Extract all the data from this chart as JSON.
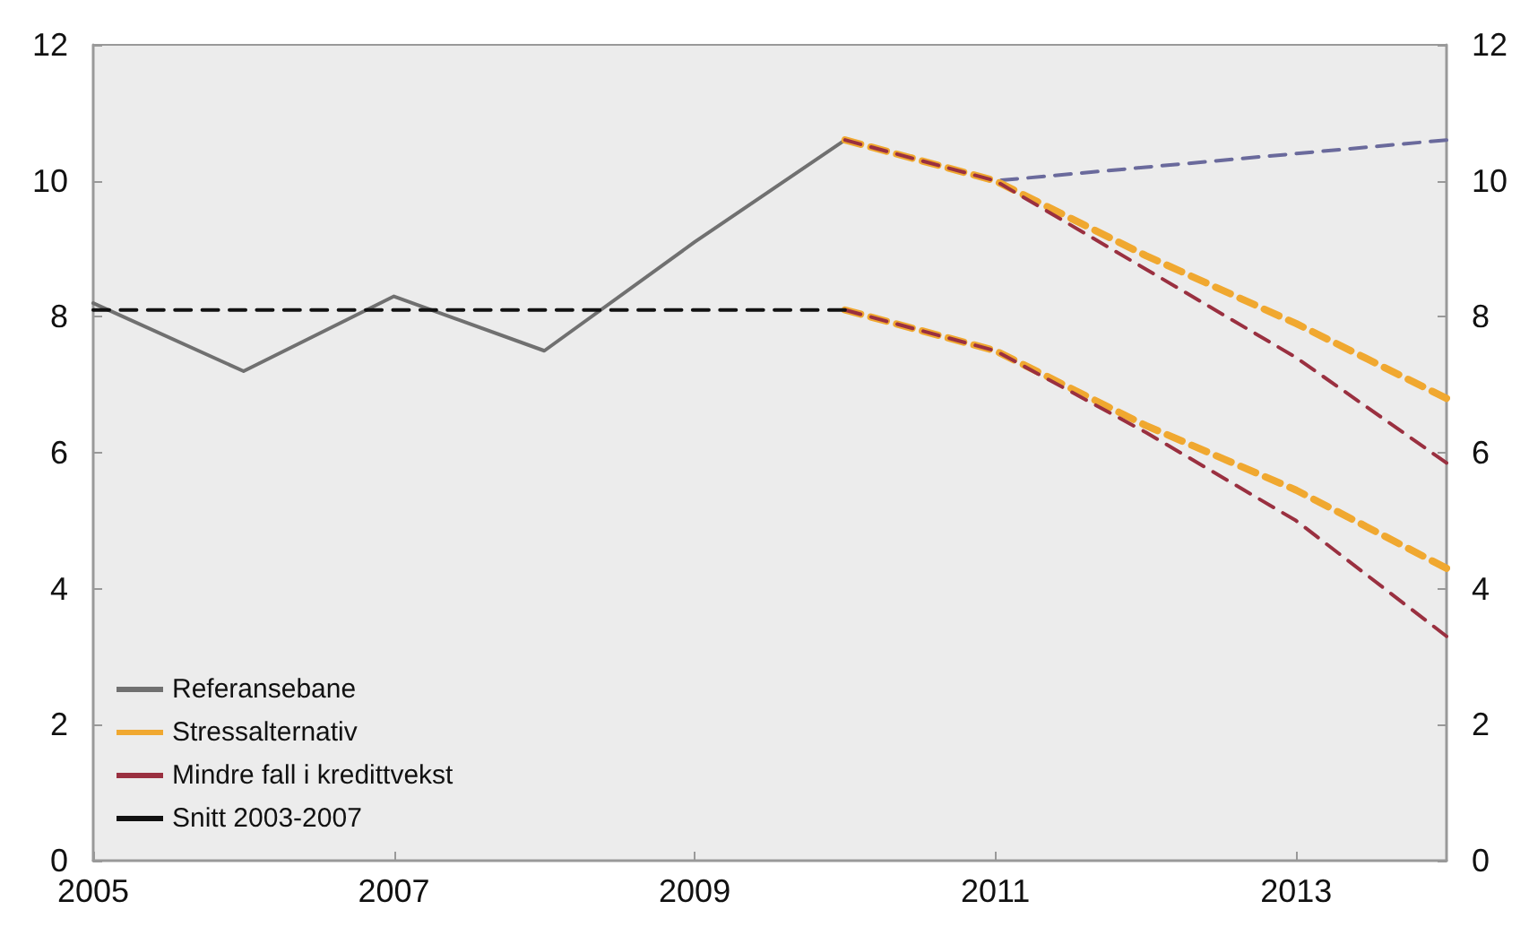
{
  "chart_data": {
    "type": "line",
    "xlim": [
      2005,
      2014
    ],
    "xticks": [
      2005,
      2007,
      2009,
      2011,
      2013
    ],
    "ylim": [
      0,
      12
    ],
    "yticks": [
      0,
      2,
      4,
      6,
      8,
      10,
      12
    ],
    "y2lim": [
      0,
      12
    ],
    "y2ticks": [
      0,
      2,
      4,
      6,
      8,
      10,
      12
    ],
    "grid": false,
    "legend": "bottom left",
    "marker": "none",
    "series": [
      {
        "name": "Referansebane",
        "color": "#707070",
        "line_style": "solid",
        "x": [
          2005,
          2006,
          2007,
          2008,
          2009,
          2010
        ],
        "values": [
          8.2,
          7.2,
          8.3,
          7.5,
          9.1,
          10.6
        ]
      },
      {
        "color": "#6a6a9c",
        "line_style": "dashed",
        "x": [
          2010,
          2011,
          2012,
          2013,
          2014
        ],
        "values": [
          10.6,
          10.0,
          10.2,
          10.4,
          10.6
        ]
      },
      {
        "name": "Stressalternativ",
        "color": "#f0a830",
        "line_style": "dashed",
        "x": [
          2010,
          2011,
          2012,
          2013,
          2014
        ],
        "values": [
          10.6,
          10.0,
          8.9,
          7.9,
          6.8
        ]
      },
      {
        "color": "#f0a830",
        "line_style": "dashed",
        "x": [
          2010,
          2011,
          2012,
          2013,
          2014
        ],
        "values": [
          8.1,
          7.5,
          6.4,
          5.45,
          4.3
        ]
      },
      {
        "name": "Mindre fall i kredittvekst",
        "color": "#9a3040",
        "line_style": "dashed",
        "x": [
          2010,
          2011,
          2012,
          2013,
          2014
        ],
        "values": [
          10.6,
          10.0,
          8.7,
          7.4,
          5.85
        ]
      },
      {
        "color": "#9a3040",
        "line_style": "dashed",
        "x": [
          2010,
          2011,
          2012,
          2013,
          2014
        ],
        "values": [
          8.1,
          7.5,
          6.3,
          5.0,
          3.3
        ]
      },
      {
        "name": "Snitt 2003-2007",
        "color": "#111111",
        "line_style": "dashed",
        "x": [
          2005,
          2010
        ],
        "values": [
          8.1,
          8.1
        ]
      }
    ]
  }
}
